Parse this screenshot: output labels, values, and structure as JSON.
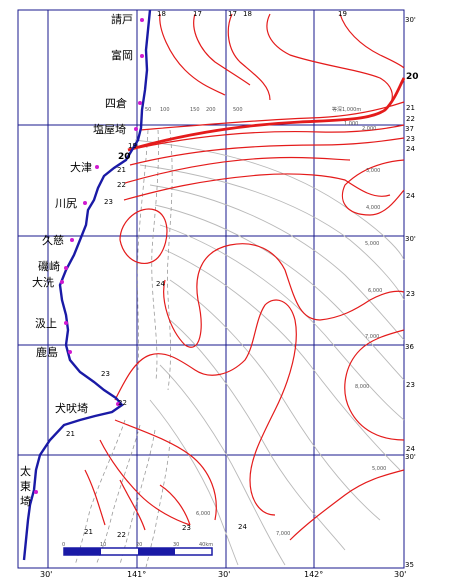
{
  "places": [
    {
      "name": "請戸"
    },
    {
      "name": "富岡"
    },
    {
      "name": "四倉"
    },
    {
      "name": "塩屋埼"
    },
    {
      "name": "大津"
    },
    {
      "name": "川尻"
    },
    {
      "name": "久慈"
    },
    {
      "name": "磯崎"
    },
    {
      "name": "大洗"
    },
    {
      "name": "汲上"
    },
    {
      "name": "鹿島"
    },
    {
      "name": "犬吠埼"
    },
    {
      "name": "太"
    },
    {
      "name": "東"
    },
    {
      "name": "埼"
    }
  ],
  "lon_labels": [
    "30'",
    "141°",
    "30'",
    "142°",
    "30'"
  ],
  "lat_labels": [
    "30'",
    "37°",
    "30'",
    "36°",
    "30'",
    "35°"
  ],
  "lat_labels_note": "right edge labels appear as 30', 37, 30', 36, 30', 35 in image",
  "lat_edge_texts": [
    "30'",
    "37",
    "30'",
    "36",
    "30'",
    "35"
  ],
  "isotherm_labels": {
    "top": [
      "18",
      "17",
      "17",
      "18",
      "19"
    ],
    "right": [
      "20",
      "21",
      "22",
      "23",
      "24",
      "24",
      "23",
      "23",
      "24"
    ],
    "inner": [
      "19",
      "20",
      "21",
      "22",
      "23",
      "24",
      "22",
      "23",
      "21",
      "21",
      "22",
      "23",
      "24"
    ]
  },
  "depth_labels": [
    "50",
    "100",
    "150",
    "200",
    "500",
    "1,000",
    "2,000",
    "3,000",
    "4,000",
    "5,000",
    "6,000",
    "7,000",
    "8,000",
    "5,000",
    "6,000",
    "7,000"
  ],
  "depth_contour_label_big": "等深1,000m",
  "scale_bar": {
    "ticks": [
      "0",
      "10",
      "20",
      "30",
      "40km"
    ]
  },
  "colors": {
    "isotherm": "#e41b1b",
    "isotherm_thick": "#e41b1b",
    "grid": "#1a1a8c",
    "coast": "#1a1aa6",
    "depth_contour": "#b9b9b9",
    "dashed_contour": "#9a9a9a",
    "place_marker": "#d01ad0"
  }
}
